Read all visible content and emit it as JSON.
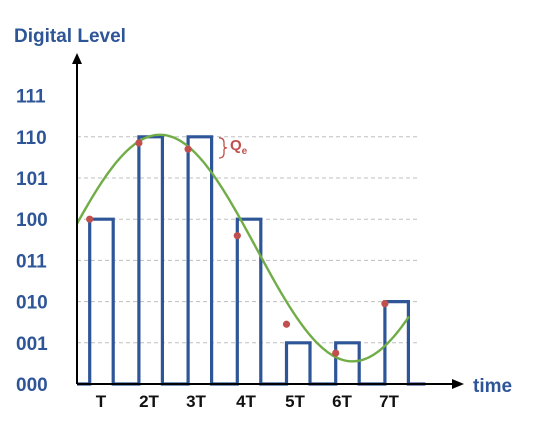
{
  "y_axis_title": "Digital Level",
  "x_axis_title": "time",
  "levels": [
    "000",
    "001",
    "010",
    "011",
    "100",
    "101",
    "110",
    "111"
  ],
  "time_labels": [
    "T",
    "2T",
    "3T",
    "4T",
    "5T",
    "6T",
    "7T"
  ],
  "quantization_error": {
    "label": "Q",
    "subscript": "e"
  },
  "sample_levels": [
    4,
    6,
    6,
    4,
    1,
    1,
    2
  ],
  "sample_values": [
    4.0,
    5.85,
    5.7,
    3.6,
    1.45,
    0.75,
    1.95
  ],
  "colors": {
    "axis_text": "#2e5597",
    "pulse_stroke": "#2e5597",
    "curve": "#70ad47",
    "sample_points": "#c0504d",
    "grid": "#bfbfbf",
    "axes": "#000000"
  },
  "icons": {
    "y_arrow": "arrow-up-icon",
    "x_arrow": "arrow-right-icon"
  }
}
